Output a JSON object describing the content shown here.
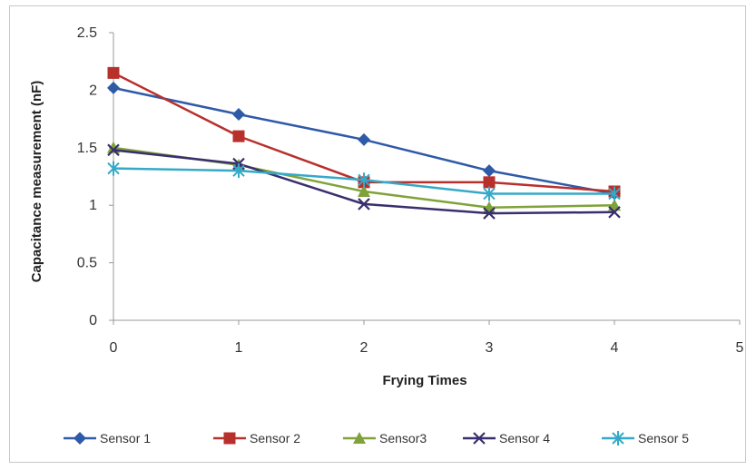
{
  "chart_data": {
    "type": "line",
    "title": "",
    "xlabel": "Frying Times",
    "ylabel": "Capacitance measurement (nF)",
    "xlim": [
      0,
      5
    ],
    "ylim": [
      0,
      2.5
    ],
    "x_ticks": [
      "0",
      "1",
      "2",
      "3",
      "4",
      "5"
    ],
    "y_ticks": [
      "0",
      "0.5",
      "1",
      "1.5",
      "2",
      "2.5"
    ],
    "grid": false,
    "legend_position": "bottom",
    "x": [
      0,
      1,
      2,
      3,
      4
    ],
    "series": [
      {
        "name": "Sensor 1",
        "color": "#2f5aa8",
        "marker": "diamond",
        "values": [
          2.02,
          1.79,
          1.57,
          1.3,
          1.1
        ]
      },
      {
        "name": "Sensor 2",
        "color": "#b8302c",
        "marker": "square",
        "values": [
          2.15,
          1.6,
          1.2,
          1.2,
          1.12
        ]
      },
      {
        "name": "Sensor3",
        "color": "#7fa33a",
        "marker": "triangle",
        "values": [
          1.5,
          1.35,
          1.12,
          0.98,
          1.0
        ]
      },
      {
        "name": "Sensor 4",
        "color": "#3a2f6e",
        "marker": "x",
        "values": [
          1.48,
          1.36,
          1.01,
          0.93,
          0.94
        ]
      },
      {
        "name": "Sensor 5",
        "color": "#35a9c8",
        "marker": "star",
        "values": [
          1.32,
          1.3,
          1.22,
          1.1,
          1.1
        ]
      }
    ]
  }
}
